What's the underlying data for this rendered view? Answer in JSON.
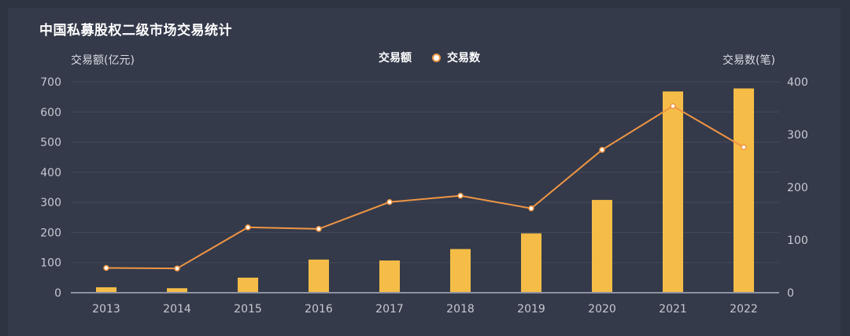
{
  "chart_data": {
    "type": "bar",
    "title": "中国私募股权二级市场交易统计",
    "categories": [
      "2013",
      "2014",
      "2015",
      "2016",
      "2017",
      "2018",
      "2019",
      "2020",
      "2021",
      "2022"
    ],
    "y_left_label": "交易额(亿元)",
    "y_right_label": "交易数(笔)",
    "y_left_range": [
      0,
      700
    ],
    "y_right_range": [
      0,
      400
    ],
    "y_left_ticks": [
      "0",
      "100",
      "200",
      "300",
      "400",
      "500",
      "600",
      "700"
    ],
    "y_right_ticks": [
      "0",
      "100",
      "200",
      "300",
      "400"
    ],
    "series": [
      {
        "name": "交易额",
        "type": "bar",
        "axis": "left",
        "color": "#f5bd48",
        "values": [
          18,
          15,
          50,
          110,
          107,
          145,
          197,
          308,
          668,
          678
        ]
      },
      {
        "name": "交易数",
        "type": "line",
        "axis": "right",
        "color": "#ef9544",
        "values": [
          47,
          46,
          124,
          121,
          172,
          184,
          160,
          271,
          354,
          276
        ]
      }
    ],
    "grid": true,
    "legend_position": "top-center"
  },
  "colors": {
    "background": "#2f3443",
    "grid": "#454b5c",
    "axis": "#8e93a3",
    "tick_text": "#c6c9d2"
  }
}
